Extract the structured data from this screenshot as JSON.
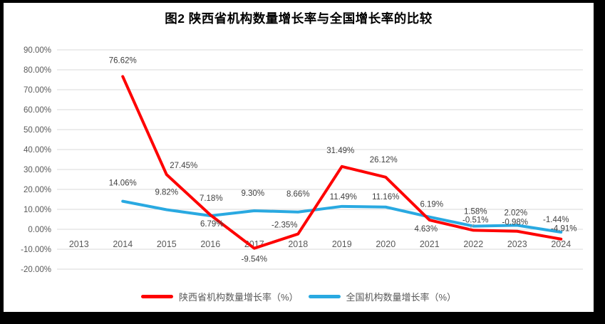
{
  "title": "图2 陕西省机构数量增长率与全国增长率的比较",
  "frame": {
    "border_color": "#000000",
    "background": "#FFFFFF"
  },
  "chart_data": {
    "type": "line",
    "categories": [
      "2013",
      "2014",
      "2015",
      "2016",
      "2017",
      "2018",
      "2019",
      "2020",
      "2021",
      "2022",
      "2023",
      "2024"
    ],
    "series": [
      {
        "id": "shaanxi",
        "name": "陕西省机构数量增长率（%）",
        "color": "#FE0000",
        "values": [
          null,
          76.62,
          27.45,
          7.18,
          -9.54,
          -2.35,
          31.49,
          26.12,
          4.63,
          -0.51,
          -0.98,
          -4.91
        ],
        "labels": [
          "",
          "76.62%",
          "27.45%",
          "7.18%",
          "-9.54%",
          "-2.35%",
          "31.49%",
          "26.12%",
          "4.63%",
          "-0.51%",
          "-0.98%",
          "-4.91%"
        ],
        "label_offsets": [
          [
            0,
            0
          ],
          [
            0,
            -23
          ],
          [
            24,
            -13
          ],
          [
            1,
            -24
          ],
          [
            0,
            15
          ],
          [
            -19,
            -13
          ],
          [
            -2,
            -23
          ],
          [
            -3,
            -25
          ],
          [
            -5,
            12
          ],
          [
            3,
            -15
          ],
          [
            -3,
            -13
          ],
          [
            4,
            -15
          ]
        ]
      },
      {
        "id": "national",
        "name": "全国机构数量增长率（%）",
        "color": "#29A9E1",
        "values": [
          null,
          14.06,
          9.82,
          6.79,
          9.3,
          8.66,
          11.49,
          11.16,
          6.19,
          1.58,
          2.02,
          -1.44
        ],
        "labels": [
          "",
          "14.06%",
          "9.82%",
          "6.79%",
          "9.30%",
          "8.66%",
          "11.49%",
          "11.16%",
          "6.19%",
          "1.58%",
          "2.02%",
          "-1.44%"
        ],
        "label_offsets": [
          [
            0,
            0
          ],
          [
            0,
            -26
          ],
          [
            0,
            -25
          ],
          [
            2,
            11
          ],
          [
            -2,
            -25
          ],
          [
            0,
            -26
          ],
          [
            2,
            -14
          ],
          [
            0,
            -15
          ],
          [
            3,
            -18
          ],
          [
            3,
            -21
          ],
          [
            -2,
            -18
          ],
          [
            -7,
            -18
          ]
        ]
      }
    ],
    "yticks": [
      {
        "v": 90,
        "label": "90.00%"
      },
      {
        "v": 80,
        "label": "80.00%"
      },
      {
        "v": 70,
        "label": "70.00%"
      },
      {
        "v": 60,
        "label": "60.00%"
      },
      {
        "v": 50,
        "label": "50.00%"
      },
      {
        "v": 40,
        "label": "40.00%"
      },
      {
        "v": 30,
        "label": "30.00%"
      },
      {
        "v": 20,
        "label": "20.00%"
      },
      {
        "v": 10,
        "label": "10.00%"
      },
      {
        "v": 0,
        "label": "0.00%"
      },
      {
        "v": -10,
        "label": "-10.00%"
      },
      {
        "v": -20,
        "label": "-20.00%"
      }
    ],
    "ylim": [
      -20,
      90
    ],
    "grid": true,
    "legend_position": "bottom",
    "callouts": [
      {
        "series": 0,
        "index": 9
      }
    ],
    "colors": {
      "gridline": "#D9D9D9",
      "axis_text": "#595959",
      "data_label_text": "#404040",
      "callout_line": "#A6A6A6"
    }
  }
}
